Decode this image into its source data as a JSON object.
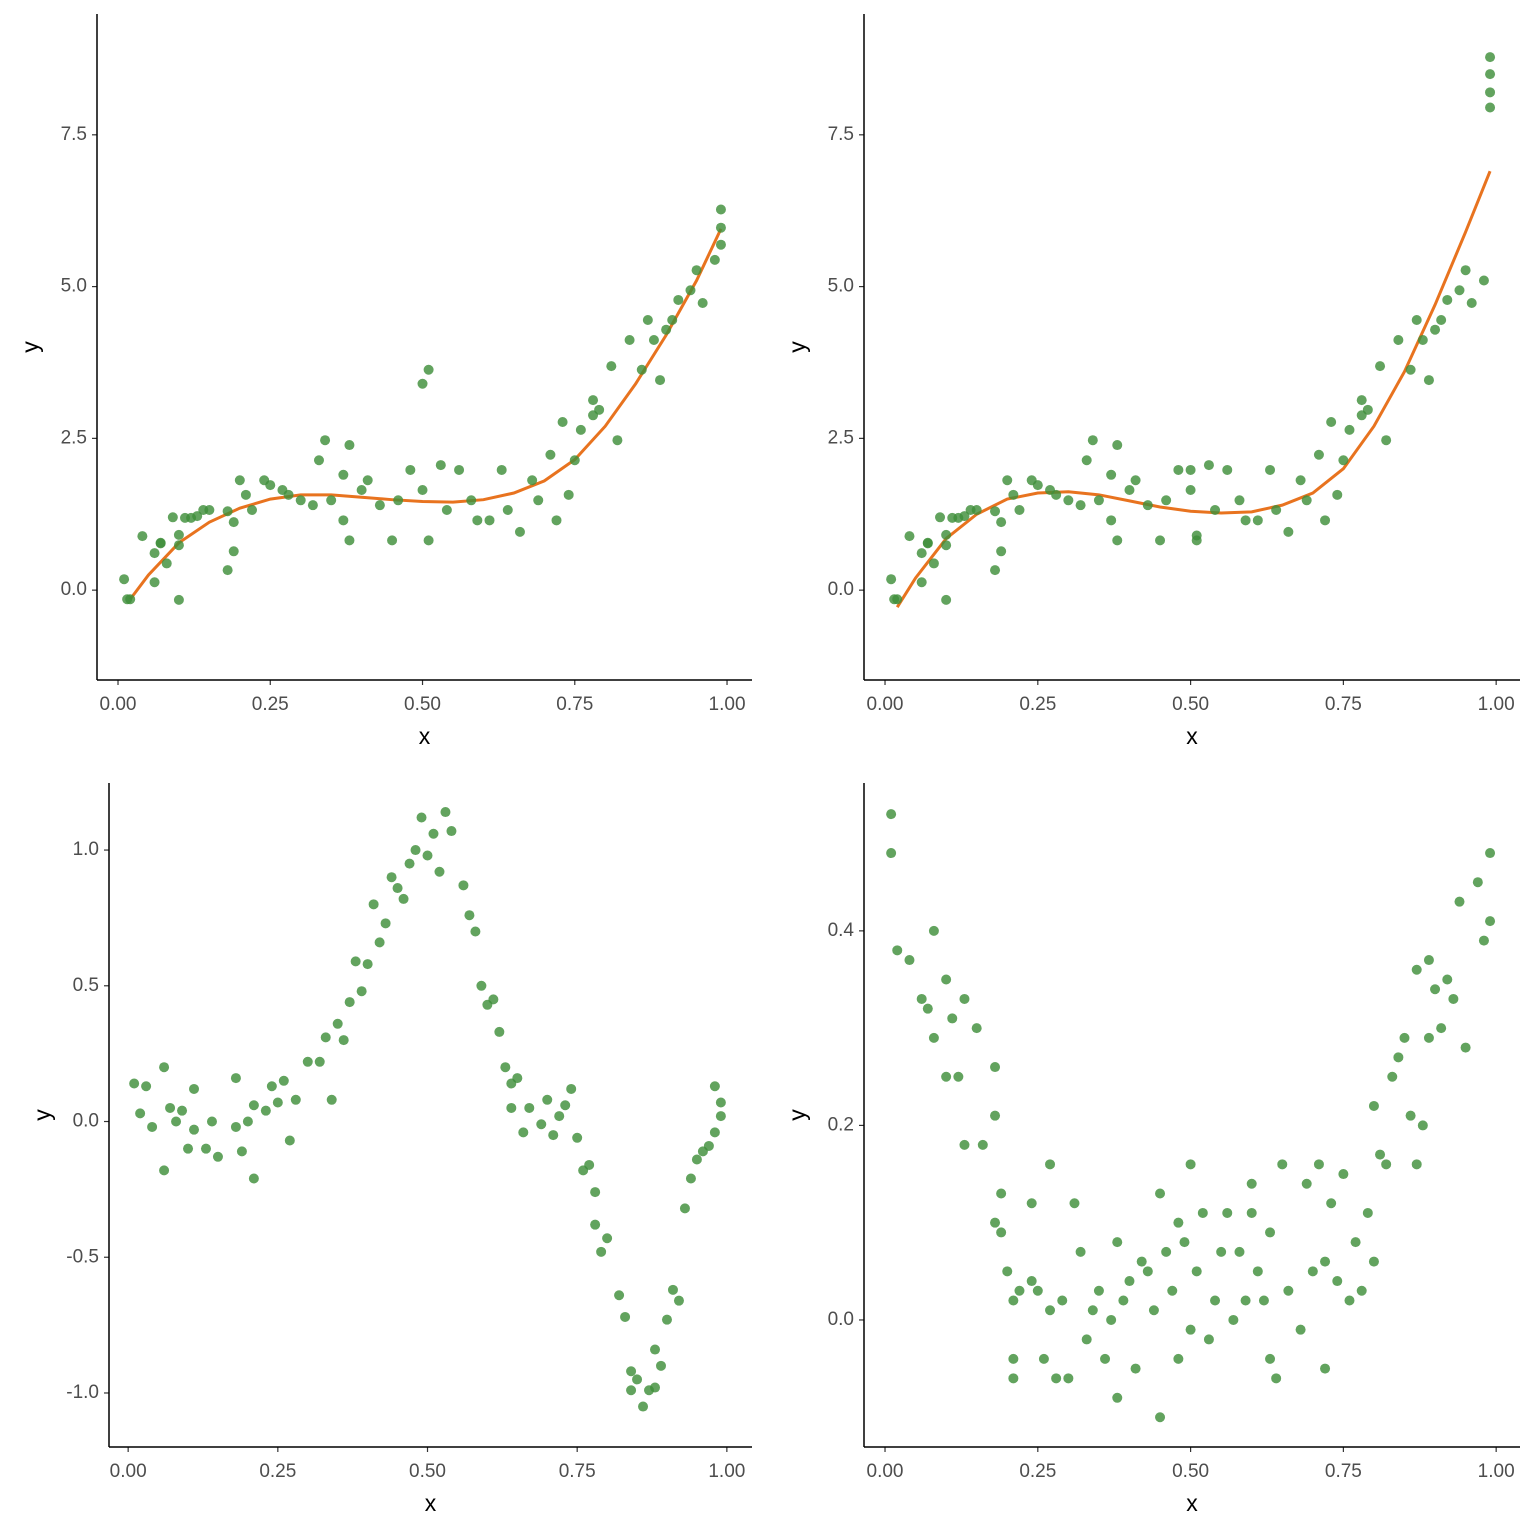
{
  "chart_data": [
    {
      "type": "scatter",
      "x_label": "x",
      "y_label": "y",
      "color": "#3f8f3a",
      "xlim": [
        -0.0345,
        1.041
      ],
      "ylim": [
        -1.48,
        9.49
      ],
      "xticks": [
        {
          "value": 0,
          "label": "0.00"
        },
        0.25,
        {
          "value": 0.5,
          "label": "0.50"
        },
        0.75,
        {
          "value": 1,
          "label": "1.00"
        }
      ],
      "yticks": [
        {
          "value": 0,
          "label": "0.0"
        },
        2.5,
        {
          "value": 5,
          "label": "5.0"
        },
        7.5
      ],
      "x": [
        0.01,
        0.015,
        0.02,
        0.04,
        0.06,
        0.06,
        0.07,
        0.07,
        0.08,
        0.09,
        0.1,
        0.1,
        0.1,
        0.11,
        0.12,
        0.13,
        0.14,
        0.15,
        0.18,
        0.18,
        0.19,
        0.19,
        0.2,
        0.21,
        0.22,
        0.24,
        0.25,
        0.27,
        0.28,
        0.3,
        0.32,
        0.33,
        0.34,
        0.35,
        0.37,
        0.37,
        0.38,
        0.38,
        0.4,
        0.41,
        0.43,
        0.45,
        0.46,
        0.48,
        0.5,
        0.5,
        0.51,
        0.51,
        0.53,
        0.54,
        0.56,
        0.58,
        0.59,
        0.61,
        0.63,
        0.64,
        0.66,
        0.68,
        0.69,
        0.71,
        0.72,
        0.73,
        0.74,
        0.75,
        0.76,
        0.78,
        0.78,
        0.79,
        0.81,
        0.82,
        0.84,
        0.86,
        0.87,
        0.88,
        0.89,
        0.9,
        0.91,
        0.92,
        0.94,
        0.95,
        0.96,
        0.98,
        0.99,
        0.99,
        0.99
      ],
      "values": [
        0.18,
        -0.15,
        -0.15,
        0.89,
        0.61,
        0.13,
        0.77,
        0.78,
        0.44,
        1.2,
        0.74,
        -0.16,
        0.91,
        1.19,
        1.19,
        1.22,
        1.32,
        1.32,
        1.3,
        0.33,
        1.12,
        0.64,
        1.81,
        1.57,
        1.32,
        1.81,
        1.73,
        1.65,
        1.57,
        1.48,
        1.4,
        2.14,
        2.47,
        1.48,
        1.15,
        1.9,
        0.82,
        2.39,
        1.65,
        1.81,
        1.4,
        0.82,
        1.48,
        1.98,
        1.65,
        3.4,
        3.63,
        0.82,
        2.06,
        1.32,
        1.98,
        1.48,
        1.15,
        1.15,
        1.98,
        1.32,
        0.96,
        1.81,
        1.48,
        2.23,
        1.15,
        2.77,
        1.57,
        2.14,
        2.64,
        3.13,
        2.88,
        2.97,
        3.69,
        2.47,
        4.12,
        3.63,
        4.45,
        4.12,
        3.46,
        4.29,
        4.45,
        4.78,
        4.94,
        5.27,
        4.73,
        5.44,
        6.27,
        5.97,
        5.69
      ],
      "line": {
        "color": "#e8731f",
        "x": [
          0.02,
          0.05,
          0.1,
          0.15,
          0.2,
          0.25,
          0.3,
          0.35,
          0.4,
          0.45,
          0.5,
          0.55,
          0.6,
          0.65,
          0.7,
          0.75,
          0.8,
          0.85,
          0.9,
          0.95,
          0.99
        ],
        "values": [
          -0.15,
          0.25,
          0.78,
          1.12,
          1.35,
          1.5,
          1.57,
          1.57,
          1.53,
          1.49,
          1.46,
          1.45,
          1.49,
          1.6,
          1.8,
          2.15,
          2.7,
          3.4,
          4.2,
          5.1,
          5.95
        ]
      }
    },
    {
      "type": "scatter",
      "x_label": "x",
      "y_label": "y",
      "color": "#3f8f3a",
      "xlim": [
        -0.0344,
        1.039
      ],
      "ylim": [
        -1.48,
        9.49
      ],
      "xticks": [
        {
          "value": 0,
          "label": "0.00"
        },
        0.25,
        {
          "value": 0.5,
          "label": "0.50"
        },
        0.75,
        {
          "value": 1,
          "label": "1.00"
        }
      ],
      "yticks": [
        {
          "value": 0,
          "label": "0.0"
        },
        2.5,
        {
          "value": 5,
          "label": "5.0"
        },
        7.5
      ],
      "x": [
        0.01,
        0.015,
        0.02,
        0.04,
        0.06,
        0.06,
        0.07,
        0.07,
        0.08,
        0.09,
        0.1,
        0.1,
        0.1,
        0.11,
        0.12,
        0.13,
        0.14,
        0.15,
        0.18,
        0.18,
        0.19,
        0.19,
        0.2,
        0.21,
        0.22,
        0.24,
        0.25,
        0.27,
        0.28,
        0.3,
        0.32,
        0.33,
        0.34,
        0.35,
        0.37,
        0.37,
        0.38,
        0.38,
        0.4,
        0.41,
        0.43,
        0.45,
        0.46,
        0.48,
        0.5,
        0.5,
        0.51,
        0.51,
        0.53,
        0.54,
        0.56,
        0.58,
        0.59,
        0.61,
        0.63,
        0.64,
        0.66,
        0.68,
        0.69,
        0.71,
        0.72,
        0.73,
        0.74,
        0.75,
        0.76,
        0.78,
        0.78,
        0.79,
        0.81,
        0.82,
        0.84,
        0.86,
        0.87,
        0.88,
        0.89,
        0.9,
        0.91,
        0.92,
        0.94,
        0.95,
        0.96,
        0.98,
        0.99,
        0.99,
        0.99,
        0.99
      ],
      "values": [
        0.18,
        -0.15,
        -0.15,
        0.89,
        0.61,
        0.13,
        0.77,
        0.78,
        0.44,
        1.2,
        0.74,
        -0.16,
        0.91,
        1.19,
        1.19,
        1.22,
        1.32,
        1.32,
        1.3,
        0.33,
        1.12,
        0.64,
        1.81,
        1.57,
        1.32,
        1.81,
        1.73,
        1.65,
        1.57,
        1.48,
        1.4,
        2.14,
        2.47,
        1.48,
        1.15,
        1.9,
        0.82,
        2.39,
        1.65,
        1.81,
        1.4,
        0.82,
        1.48,
        1.98,
        1.65,
        1.98,
        0.9,
        0.82,
        2.06,
        1.32,
        1.98,
        1.48,
        1.15,
        1.15,
        1.98,
        1.32,
        0.96,
        1.81,
        1.48,
        2.23,
        1.15,
        2.77,
        1.57,
        2.14,
        2.64,
        3.13,
        2.88,
        2.97,
        3.69,
        2.47,
        4.12,
        3.63,
        4.45,
        4.12,
        3.46,
        4.29,
        4.45,
        4.78,
        4.94,
        5.27,
        4.73,
        5.1,
        8.78,
        8.5,
        8.2,
        7.95
      ],
      "line": {
        "color": "#e8731f",
        "x": [
          0.02,
          0.05,
          0.1,
          0.15,
          0.2,
          0.25,
          0.3,
          0.35,
          0.4,
          0.45,
          0.5,
          0.55,
          0.6,
          0.65,
          0.7,
          0.75,
          0.8,
          0.85,
          0.9,
          0.95,
          0.99
        ],
        "values": [
          -0.28,
          0.2,
          0.85,
          1.25,
          1.5,
          1.6,
          1.62,
          1.57,
          1.47,
          1.37,
          1.3,
          1.27,
          1.29,
          1.4,
          1.6,
          2.0,
          2.7,
          3.6,
          4.7,
          5.9,
          6.9
        ]
      }
    },
    {
      "type": "scatter",
      "x_label": "x",
      "y_label": "y",
      "color": "#3f8f3a",
      "xlim": [
        -0.032,
        1.042
      ],
      "ylim": [
        -1.199,
        1.247
      ],
      "xticks": [
        {
          "value": 0,
          "label": "0.00"
        },
        0.25,
        {
          "value": 0.5,
          "label": "0.50"
        },
        0.75,
        {
          "value": 1,
          "label": "1.00"
        }
      ],
      "yticks": [
        {
          "value": -1,
          "label": "-1.0"
        },
        -0.5,
        {
          "value": 0,
          "label": "0.0"
        },
        0.5,
        {
          "value": 1,
          "label": "1.0"
        }
      ],
      "x": [
        0.01,
        0.02,
        0.03,
        0.04,
        0.06,
        0.06,
        0.07,
        0.08,
        0.09,
        0.1,
        0.11,
        0.11,
        0.13,
        0.14,
        0.15,
        0.18,
        0.18,
        0.19,
        0.2,
        0.21,
        0.21,
        0.23,
        0.24,
        0.25,
        0.26,
        0.27,
        0.28,
        0.3,
        0.32,
        0.33,
        0.34,
        0.35,
        0.36,
        0.37,
        0.38,
        0.39,
        0.4,
        0.41,
        0.42,
        0.43,
        0.44,
        0.45,
        0.46,
        0.47,
        0.48,
        0.49,
        0.5,
        0.51,
        0.52,
        0.53,
        0.54,
        0.56,
        0.57,
        0.58,
        0.59,
        0.6,
        0.61,
        0.62,
        0.63,
        0.64,
        0.64,
        0.65,
        0.66,
        0.67,
        0.69,
        0.7,
        0.71,
        0.72,
        0.73,
        0.74,
        0.75,
        0.76,
        0.77,
        0.78,
        0.78,
        0.79,
        0.8,
        0.82,
        0.83,
        0.84,
        0.84,
        0.85,
        0.86,
        0.87,
        0.88,
        0.88,
        0.89,
        0.9,
        0.91,
        0.92,
        0.93,
        0.94,
        0.95,
        0.96,
        0.97,
        0.98,
        0.98,
        0.99,
        0.99
      ],
      "values": [
        0.14,
        0.03,
        0.13,
        -0.02,
        0.2,
        -0.18,
        0.05,
        0,
        0.04,
        -0.1,
        0.12,
        -0.03,
        -0.1,
        0,
        -0.13,
        -0.02,
        0.16,
        -0.11,
        0,
        -0.21,
        0.06,
        0.04,
        0.13,
        0.07,
        0.15,
        -0.07,
        0.08,
        0.22,
        0.22,
        0.31,
        0.08,
        0.36,
        0.3,
        0.44,
        0.59,
        0.48,
        0.58,
        0.8,
        0.66,
        0.73,
        0.9,
        0.86,
        0.82,
        0.95,
        1,
        1.12,
        0.98,
        1.06,
        0.92,
        1.14,
        1.07,
        0.87,
        0.76,
        0.7,
        0.5,
        0.43,
        0.45,
        0.33,
        0.2,
        0.14,
        0.05,
        0.16,
        -0.04,
        0.05,
        -0.01,
        0.08,
        -0.05,
        0.02,
        0.06,
        0.12,
        -0.06,
        -0.18,
        -0.16,
        -0.26,
        -0.38,
        -0.48,
        -0.43,
        -0.64,
        -0.72,
        -0.92,
        -0.99,
        -0.95,
        -1.05,
        -0.99,
        -0.98,
        -0.84,
        -0.9,
        -0.73,
        -0.62,
        -0.66,
        -0.32,
        -0.21,
        -0.14,
        -0.11,
        -0.09,
        -0.04,
        0.13,
        0.07,
        0.02
      ]
    },
    {
      "type": "scatter",
      "x_label": "x",
      "y_label": "y",
      "color": "#3f8f3a",
      "xlim": [
        -0.0344,
        1.039
      ],
      "ylim": [
        -0.1306,
        0.552
      ],
      "xticks": [
        {
          "value": 0,
          "label": "0.00"
        },
        0.25,
        {
          "value": 0.5,
          "label": "0.50"
        },
        0.75,
        {
          "value": 1,
          "label": "1.00"
        }
      ],
      "yticks": [
        {
          "value": 0,
          "label": "0.0"
        },
        0.2,
        0.4
      ],
      "x": [
        0.01,
        0.01,
        0.02,
        0.04,
        0.06,
        0.07,
        0.08,
        0.08,
        0.1,
        0.1,
        0.11,
        0.12,
        0.13,
        0.13,
        0.15,
        0.16,
        0.18,
        0.18,
        0.18,
        0.19,
        0.19,
        0.2,
        0.21,
        0.21,
        0.21,
        0.22,
        0.24,
        0.24,
        0.25,
        0.26,
        0.27,
        0.27,
        0.28,
        0.29,
        0.3,
        0.31,
        0.32,
        0.33,
        0.34,
        0.35,
        0.36,
        0.37,
        0.38,
        0.38,
        0.39,
        0.4,
        0.41,
        0.42,
        0.43,
        0.44,
        0.45,
        0.45,
        0.46,
        0.47,
        0.48,
        0.48,
        0.49,
        0.5,
        0.5,
        0.51,
        0.52,
        0.53,
        0.54,
        0.55,
        0.56,
        0.57,
        0.58,
        0.59,
        0.6,
        0.6,
        0.61,
        0.62,
        0.63,
        0.63,
        0.64,
        0.65,
        0.66,
        0.68,
        0.69,
        0.7,
        0.71,
        0.72,
        0.72,
        0.73,
        0.74,
        0.75,
        0.76,
        0.77,
        0.78,
        0.79,
        0.8,
        0.8,
        0.81,
        0.82,
        0.83,
        0.84,
        0.85,
        0.86,
        0.87,
        0.87,
        0.88,
        0.89,
        0.89,
        0.9,
        0.91,
        0.92,
        0.93,
        0.94,
        0.95,
        0.97,
        0.98,
        0.99,
        0.99
      ],
      "values": [
        0.52,
        0.48,
        0.38,
        0.37,
        0.33,
        0.32,
        0.4,
        0.29,
        0.35,
        0.25,
        0.31,
        0.25,
        0.18,
        0.33,
        0.3,
        0.18,
        0.26,
        0.21,
        0.1,
        0.09,
        0.13,
        0.05,
        0.02,
        -0.04,
        -0.06,
        0.03,
        0.12,
        0.04,
        0.03,
        -0.04,
        0.16,
        0.01,
        -0.06,
        0.02,
        -0.06,
        0.12,
        0.07,
        -0.02,
        0.01,
        0.03,
        -0.04,
        0,
        0.08,
        -0.08,
        0.02,
        0.04,
        -0.05,
        0.06,
        0.05,
        0.01,
        0.13,
        -0.1,
        0.07,
        0.03,
        0.1,
        -0.04,
        0.08,
        0.16,
        -0.01,
        0.05,
        0.11,
        -0.02,
        0.02,
        0.07,
        0.11,
        0,
        0.07,
        0.02,
        0.14,
        0.11,
        0.05,
        0.02,
        0.09,
        -0.04,
        -0.06,
        0.16,
        0.03,
        -0.01,
        0.14,
        0.05,
        0.16,
        0.06,
        -0.05,
        0.12,
        0.04,
        0.15,
        0.02,
        0.08,
        0.03,
        0.11,
        0.06,
        0.22,
        0.17,
        0.16,
        0.25,
        0.27,
        0.29,
        0.21,
        0.36,
        0.16,
        0.2,
        0.37,
        0.29,
        0.34,
        0.3,
        0.35,
        0.33,
        0.43,
        0.28,
        0.45,
        0.39,
        0.48,
        0.41
      ]
    }
  ]
}
